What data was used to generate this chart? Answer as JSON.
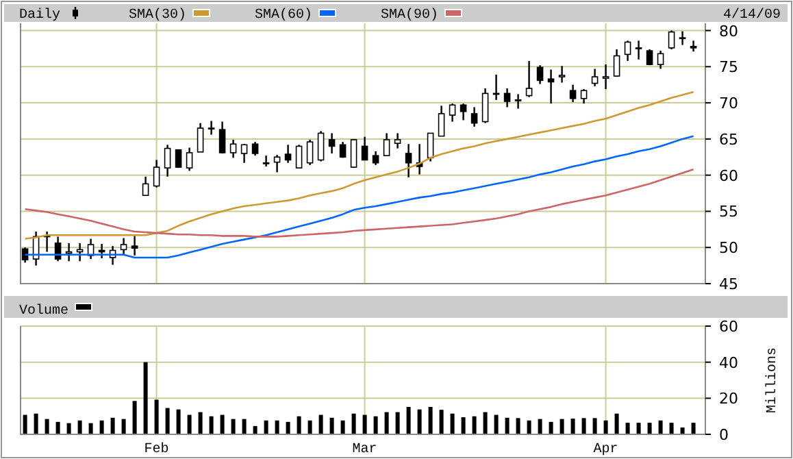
{
  "chart_data": [
    {
      "type": "candlestick",
      "annotations": [
        "4/14/09"
      ],
      "categories": [
        null,
        null,
        null,
        null,
        null,
        null,
        null,
        null,
        null,
        null,
        null,
        null,
        null,
        null,
        null,
        null,
        null,
        null,
        null,
        null,
        null,
        null,
        null,
        null,
        null,
        null,
        null,
        null,
        null,
        null,
        null,
        null,
        null,
        null,
        null,
        null,
        null,
        null,
        null,
        null,
        null,
        null,
        null,
        null,
        null,
        null,
        null,
        null,
        null,
        null,
        null,
        null,
        null,
        null,
        null,
        null,
        null,
        null,
        null,
        null,
        null,
        null
      ],
      "ylim": [
        45,
        81
      ],
      "yticks": [
        45,
        50,
        55,
        60,
        65,
        70,
        75,
        80
      ],
      "grid": true,
      "legend": "top",
      "tick_labels": "y",
      "series": [
        {
          "type": "candlestick",
          "name": "Daily",
          "color": "#000000",
          "ohlc": [
            [
              49.8,
              50.0,
              47.9,
              48.3
            ],
            [
              48.4,
              52.2,
              47.5,
              51.5
            ],
            [
              51.5,
              52.2,
              49.4,
              51.6
            ],
            [
              50.6,
              51.5,
              48.1,
              48.4
            ],
            [
              49.2,
              50.6,
              48.1,
              49.4
            ],
            [
              49.4,
              50.6,
              48.1,
              49.7
            ],
            [
              48.9,
              51.2,
              48.4,
              50.4
            ],
            [
              49.6,
              50.5,
              48.5,
              49.4
            ],
            [
              48.6,
              50.2,
              47.6,
              49.6
            ],
            [
              49.7,
              51.3,
              48.9,
              50.4
            ],
            [
              50.2,
              51.6,
              48.9,
              49.9
            ],
            [
              57.2,
              59.8,
              57.2,
              58.8
            ],
            [
              58.5,
              62.1,
              58.3,
              61.1
            ],
            [
              61.0,
              64.2,
              59.8,
              63.7
            ],
            [
              63.5,
              63.5,
              61.0,
              61.1
            ],
            [
              61.0,
              63.8,
              60.6,
              63.1
            ],
            [
              63.2,
              67.2,
              63.2,
              66.5
            ],
            [
              66.5,
              67.5,
              65.6,
              66.5
            ],
            [
              66.3,
              67.4,
              63.0,
              63.1
            ],
            [
              63.1,
              64.9,
              62.4,
              64.3
            ],
            [
              63.0,
              64.3,
              61.7,
              64.2
            ],
            [
              64.3,
              64.6,
              62.7,
              63.0
            ],
            [
              61.7,
              62.7,
              61.2,
              61.7
            ],
            [
              61.8,
              62.8,
              60.4,
              62.5
            ],
            [
              62.9,
              64.2,
              61.7,
              62.1
            ],
            [
              61.0,
              64.2,
              61.0,
              64.0
            ],
            [
              61.7,
              64.9,
              61.4,
              64.6
            ],
            [
              62.1,
              66.1,
              61.9,
              65.8
            ],
            [
              64.9,
              65.8,
              63.0,
              64.0
            ],
            [
              64.2,
              64.6,
              62.4,
              62.5
            ],
            [
              61.1,
              65.0,
              61.0,
              64.9
            ],
            [
              64.0,
              65.3,
              62.1,
              62.1
            ],
            [
              62.7,
              63.3,
              61.4,
              61.7
            ],
            [
              62.7,
              65.8,
              62.7,
              64.9
            ],
            [
              64.4,
              65.8,
              63.7,
              64.9
            ],
            [
              63.0,
              64.3,
              59.7,
              61.7
            ],
            [
              61.7,
              64.3,
              60.1,
              61.2
            ],
            [
              62.4,
              65.8,
              61.9,
              65.8
            ],
            [
              65.4,
              69.6,
              65.4,
              68.5
            ],
            [
              68.3,
              69.9,
              67.4,
              69.7
            ],
            [
              69.7,
              69.9,
              67.6,
              68.8
            ],
            [
              68.5,
              69.4,
              66.7,
              67.2
            ],
            [
              67.4,
              72.0,
              67.2,
              71.3
            ],
            [
              71.3,
              73.9,
              70.4,
              71.3
            ],
            [
              71.3,
              72.0,
              69.4,
              70.2
            ],
            [
              70.4,
              71.2,
              69.2,
              70.4
            ],
            [
              71.0,
              75.8,
              70.8,
              72.0
            ],
            [
              74.9,
              75.2,
              72.6,
              73.1
            ],
            [
              73.3,
              74.6,
              69.9,
              72.9
            ],
            [
              73.6,
              75.1,
              72.8,
              73.8
            ],
            [
              71.7,
              72.5,
              70.1,
              70.6
            ],
            [
              70.6,
              71.9,
              69.9,
              71.7
            ],
            [
              72.7,
              74.7,
              72.3,
              73.6
            ],
            [
              73.4,
              75.3,
              71.9,
              73.6
            ],
            [
              73.7,
              77.4,
              73.6,
              76.5
            ],
            [
              76.7,
              78.6,
              75.8,
              78.4
            ],
            [
              77.6,
              78.6,
              76.0,
              77.6
            ],
            [
              77.2,
              77.4,
              75.2,
              75.3
            ],
            [
              75.3,
              77.2,
              74.7,
              76.8
            ],
            [
              77.6,
              80.0,
              77.4,
              79.8
            ],
            [
              79.0,
              79.9,
              78.0,
              78.9
            ],
            [
              77.8,
              78.6,
              77.1,
              77.6
            ]
          ]
        },
        {
          "type": "line",
          "name": "SMA(30)",
          "color": "#cc9933",
          "values": [
            51.2,
            51.4,
            51.7,
            51.7,
            51.7,
            51.7,
            51.7,
            51.7,
            51.7,
            51.7,
            51.7,
            51.7,
            52.0,
            52.3,
            53.0,
            53.6,
            54.1,
            54.6,
            55.0,
            55.4,
            55.7,
            55.9,
            56.1,
            56.3,
            56.5,
            56.8,
            57.2,
            57.5,
            57.8,
            58.2,
            58.8,
            59.3,
            59.7,
            60.1,
            60.5,
            61.0,
            61.6,
            62.4,
            62.9,
            63.3,
            63.7,
            64.0,
            64.4,
            64.7,
            65.0,
            65.3,
            65.6,
            65.9,
            66.2,
            66.5,
            66.8,
            67.1,
            67.5,
            67.8,
            68.3,
            68.8,
            69.3,
            69.7,
            70.2,
            70.7,
            71.1,
            71.5
          ]
        },
        {
          "type": "line",
          "name": "SMA(60)",
          "color": "#0066ff",
          "values": [
            49.0,
            49.0,
            49.0,
            49.0,
            49.0,
            49.0,
            49.0,
            49.0,
            49.0,
            49.0,
            48.6,
            48.6,
            48.6,
            48.6,
            48.9,
            49.3,
            49.7,
            50.1,
            50.5,
            50.8,
            51.1,
            51.4,
            51.7,
            52.1,
            52.5,
            52.9,
            53.3,
            53.7,
            54.1,
            54.6,
            55.2,
            55.5,
            55.7,
            56.0,
            56.3,
            56.6,
            56.9,
            57.1,
            57.4,
            57.6,
            57.9,
            58.2,
            58.5,
            58.8,
            59.1,
            59.4,
            59.7,
            60.1,
            60.4,
            60.8,
            61.2,
            61.5,
            61.9,
            62.2,
            62.6,
            62.9,
            63.3,
            63.6,
            64.0,
            64.5,
            65.0,
            65.4
          ]
        },
        {
          "type": "line",
          "name": "SMA(90)",
          "color": "#cc6666",
          "values": [
            55.3,
            55.1,
            54.9,
            54.6,
            54.3,
            54.0,
            53.7,
            53.3,
            52.9,
            52.5,
            52.2,
            52.1,
            52.0,
            51.9,
            51.8,
            51.8,
            51.7,
            51.7,
            51.6,
            51.6,
            51.6,
            51.5,
            51.5,
            51.5,
            51.6,
            51.7,
            51.8,
            51.9,
            52.0,
            52.1,
            52.3,
            52.4,
            52.5,
            52.6,
            52.7,
            52.8,
            52.9,
            53.0,
            53.1,
            53.2,
            53.4,
            53.6,
            53.8,
            54.0,
            54.3,
            54.6,
            55.0,
            55.3,
            55.6,
            56.0,
            56.3,
            56.6,
            56.9,
            57.2,
            57.6,
            58.0,
            58.4,
            58.8,
            59.3,
            59.8,
            60.3,
            60.8
          ]
        }
      ]
    },
    {
      "type": "bar",
      "ylabel": "Millions",
      "categories": [
        null,
        null,
        null,
        null,
        null,
        null,
        null,
        null,
        null,
        null,
        null,
        null,
        "Feb",
        null,
        null,
        null,
        null,
        null,
        null,
        null,
        null,
        null,
        null,
        null,
        null,
        null,
        null,
        null,
        null,
        null,
        null,
        "Mar",
        null,
        null,
        null,
        null,
        null,
        null,
        null,
        null,
        null,
        null,
        null,
        null,
        null,
        null,
        null,
        null,
        null,
        null,
        null,
        null,
        null,
        "Apr",
        null,
        null,
        null,
        null,
        null,
        null,
        null,
        null
      ],
      "ylim": [
        0,
        60
      ],
      "yticks": [
        0,
        20,
        40,
        60
      ],
      "grid": true,
      "legend": "top",
      "series": [
        {
          "name": "Volume",
          "color": "#000000",
          "values": [
            10.8,
            11.5,
            8.5,
            6.9,
            6.2,
            7.7,
            6.2,
            7.7,
            9.2,
            8.5,
            18.5,
            40,
            19.2,
            14.6,
            13.8,
            10.8,
            12.3,
            10.0,
            10.8,
            8.5,
            8.5,
            4.6,
            7.7,
            7.7,
            6.9,
            10.0,
            7.7,
            10.8,
            9.2,
            7.7,
            11.5,
            10.8,
            10.0,
            12.3,
            12.3,
            15.2,
            13.8,
            15.2,
            13.6,
            11.5,
            9.5,
            10.0,
            12.3,
            10.8,
            9.2,
            9.0,
            7.7,
            8.5,
            6.9,
            8.5,
            8.7,
            9.0,
            9.0,
            7.7,
            11.5,
            6.4,
            6.4,
            6.4,
            7.7,
            6.4,
            3.8,
            6.4
          ]
        }
      ]
    }
  ]
}
